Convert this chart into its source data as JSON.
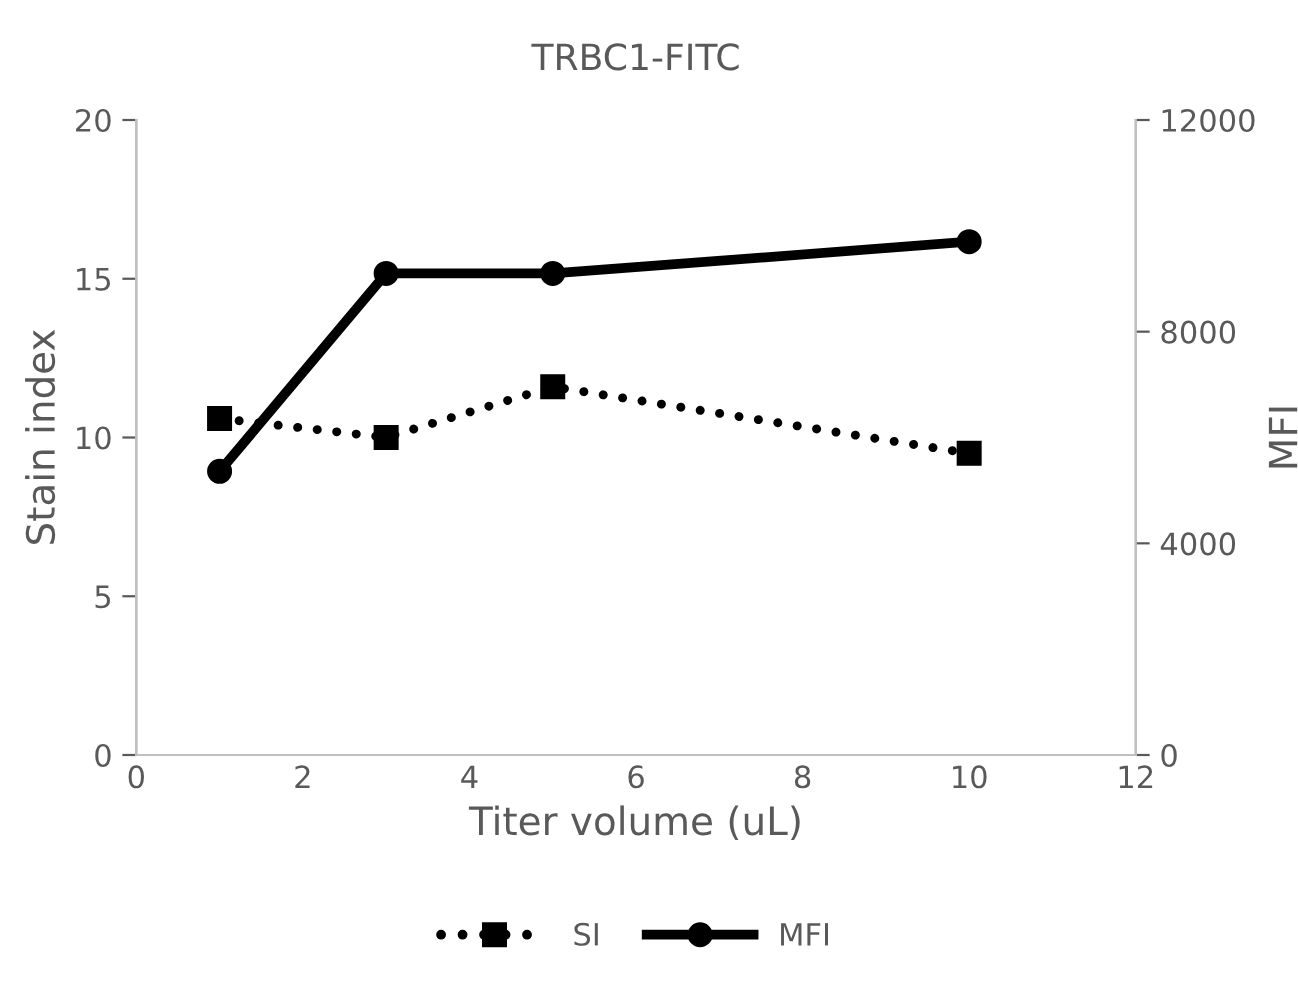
{
  "chart_data": {
    "type": "line",
    "title": "TRBC1-FITC",
    "xlabel": "Titer volume (uL)",
    "ylabel": "Stain index",
    "y2label": "MFI",
    "xlim": [
      0,
      12
    ],
    "xticks": [
      0,
      2,
      4,
      6,
      8,
      10,
      12
    ],
    "ylim": [
      0,
      20
    ],
    "yticks": [
      0,
      5,
      10,
      15,
      20
    ],
    "y2lim": [
      0,
      12000
    ],
    "y2ticks": [
      0,
      4000,
      8000,
      12000
    ],
    "x": [
      1,
      3,
      5,
      10
    ],
    "grid": false,
    "legend": "bottom",
    "series": [
      {
        "name": "SI",
        "color": "#000000",
        "values": [
          10.6,
          10.0,
          11.6,
          9.5
        ],
        "marker": "square",
        "line_style": "dotted"
      },
      {
        "name": "MFI",
        "color": "#000000",
        "values": [
          5360,
          9100,
          9100,
          9700
        ],
        "axis": "y2",
        "marker": "circle",
        "line_style": "solid"
      }
    ]
  }
}
